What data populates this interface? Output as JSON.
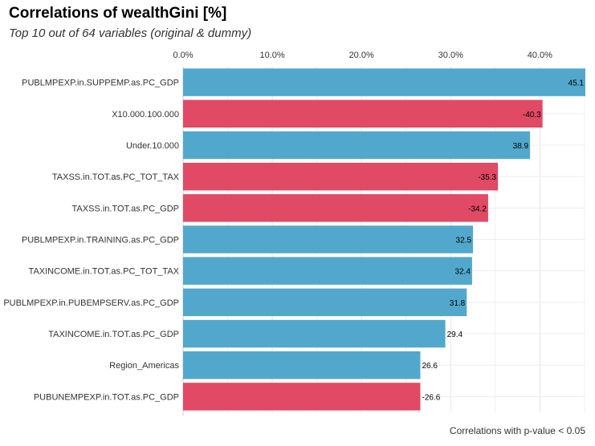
{
  "chart_data": {
    "type": "bar",
    "orientation": "horizontal",
    "title": "Correlations of wealthGini [%]",
    "subtitle": "Top 10 out of 64 variables (original & dummy)",
    "caption": "Correlations with p-value < 0.05",
    "categories": [
      "PUBLMPEXP.in.SUPPEMP.as.PC_GDP",
      "X10.000.100.000",
      "Under.10.000",
      "TAXSS.in.TOT.as.PC_TOT_TAX",
      "TAXSS.in.TOT.as.PC_GDP",
      "PUBLMPEXP.in.TRAINING.as.PC_GDP",
      "TAXINCOME.in.TOT.as.PC_TOT_TAX",
      "PUBLMPEXP.in.PUBEMPSERV.as.PC_GDP",
      "TAXINCOME.in.TOT.as.PC_GDP",
      "Region_Americas",
      "PUBUNEMPEXP.in.TOT.as.PC_GDP"
    ],
    "values": [
      45.1,
      -40.3,
      38.9,
      -35.3,
      -34.2,
      32.5,
      32.4,
      31.8,
      29.4,
      26.6,
      -26.6
    ],
    "value_labels": [
      "45.1",
      "-40.3",
      "38.9",
      "-35.3",
      "-34.2",
      "32.5",
      "32.4",
      "31.8",
      "29.4",
      "26.6",
      "-26.6"
    ],
    "xlim": [
      0,
      45.1
    ],
    "x_ticks": [
      0,
      10,
      20,
      30,
      40
    ],
    "x_tick_labels": [
      "0.0%",
      "10.0%",
      "20.0%",
      "30.0%",
      "40.0%"
    ],
    "axis_position": "top",
    "bar_value": "absolute correlation",
    "grid": true,
    "colors": {
      "positive": "#52a8cc",
      "negative": "#e04a64",
      "grid": "#e6e6e6"
    }
  }
}
